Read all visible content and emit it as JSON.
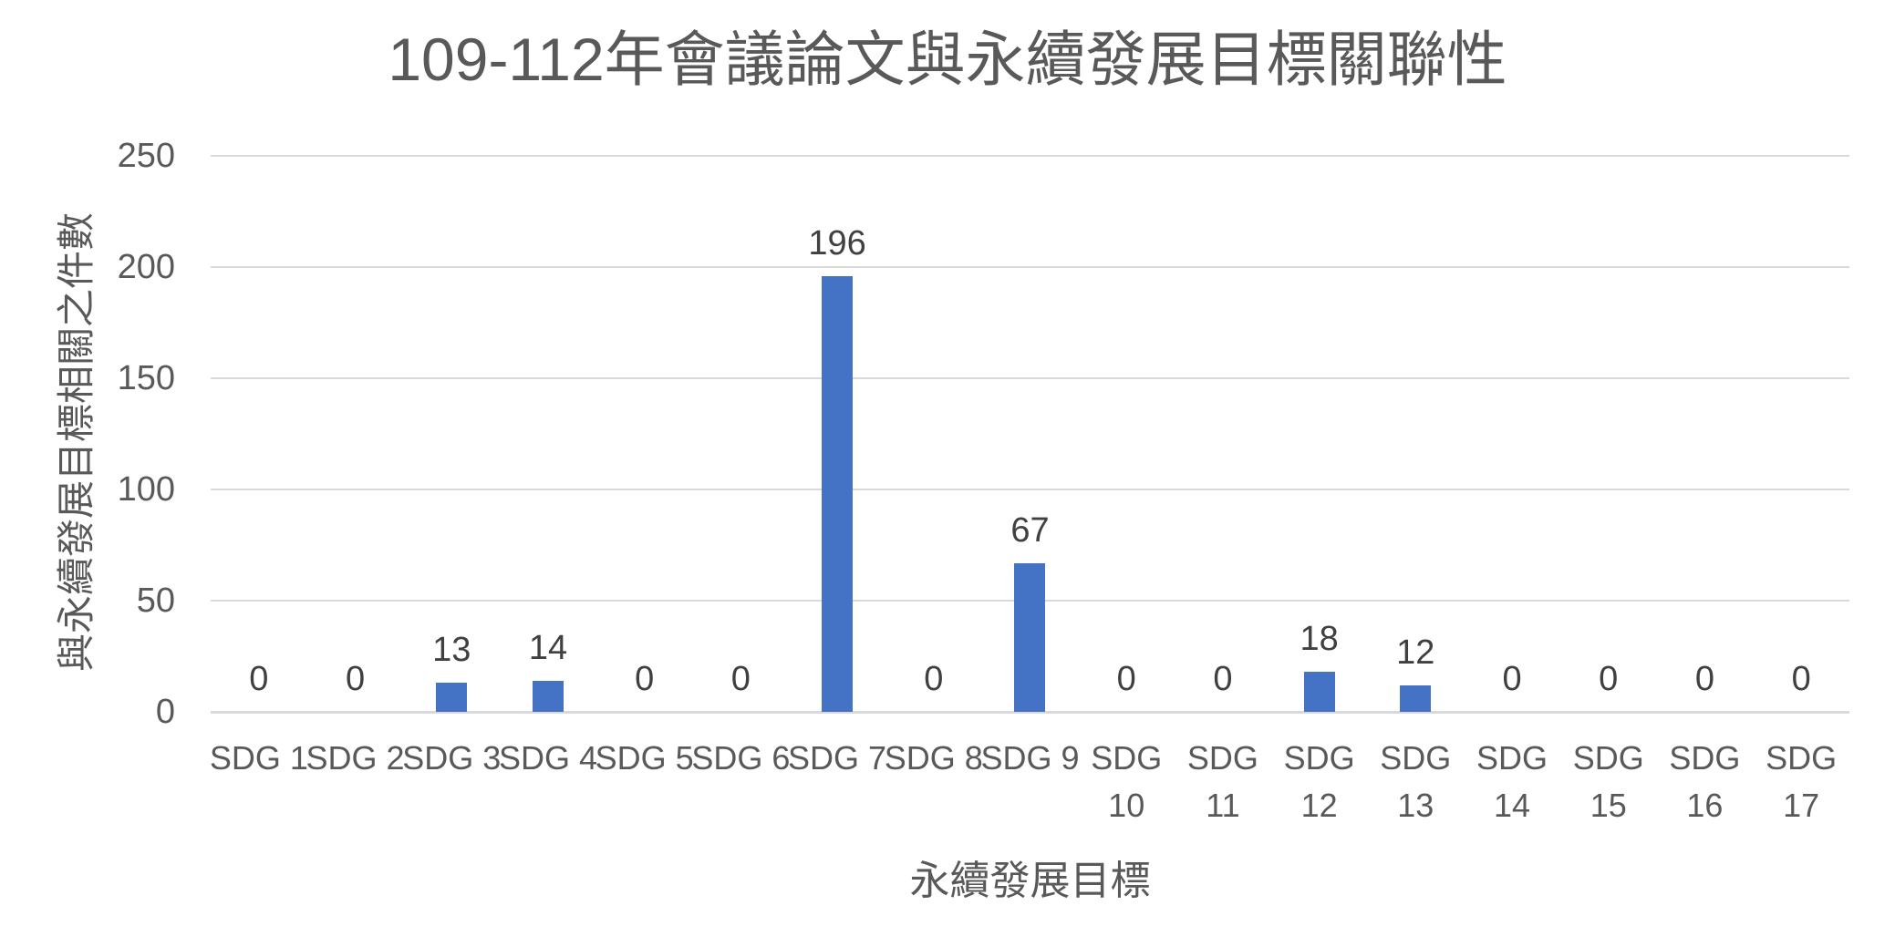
{
  "chart_data": {
    "type": "bar",
    "title": "109-112年會議論文與永續發展目標關聯性",
    "xlabel": "永續發展目標",
    "ylabel": "與永續發展目標相關之件數",
    "categories": [
      "SDG 1",
      "SDG 2",
      "SDG 3",
      "SDG 4",
      "SDG 5",
      "SDG 6",
      "SDG 7",
      "SDG 8",
      "SDG 9",
      "SDG 10",
      "SDG 11",
      "SDG 12",
      "SDG 13",
      "SDG 14",
      "SDG 15",
      "SDG 16",
      "SDG 17"
    ],
    "values": [
      0,
      0,
      13,
      14,
      0,
      0,
      196,
      0,
      67,
      0,
      0,
      18,
      12,
      0,
      0,
      0,
      0
    ],
    "data_labels": [
      0,
      0,
      13,
      14,
      0,
      0,
      196,
      0,
      67,
      0,
      0,
      18,
      12,
      0,
      0,
      0,
      0
    ],
    "ylim": [
      0,
      250
    ],
    "yticks": [
      0,
      50,
      100,
      150,
      200,
      250
    ],
    "grid": true,
    "legend": false,
    "colors": {
      "bar": "#4472C4",
      "gridline": "#D9D9D9",
      "axis_line": "#D9D9D9",
      "tick_text": "#595959",
      "title_text": "#595959",
      "data_label_text": "#404040",
      "background": "#FFFFFF"
    }
  }
}
